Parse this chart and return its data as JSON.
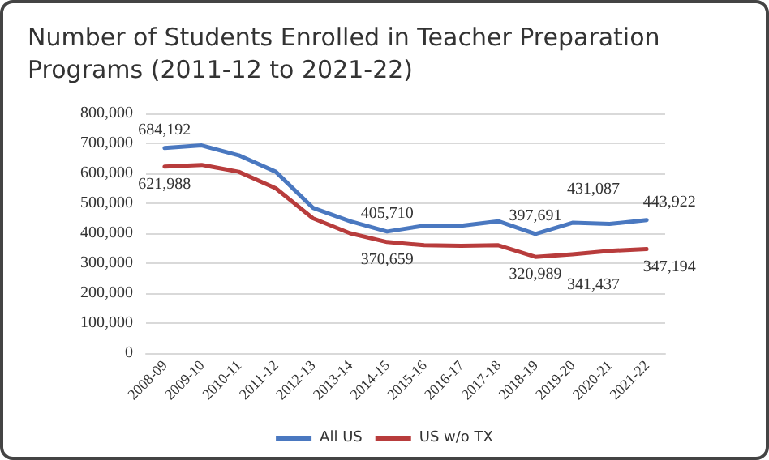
{
  "chart_data": {
    "type": "line",
    "title": "Number of Students Enrolled in Teacher Preparation Programs (2011-12 to 2021-22)",
    "categories": [
      "2008-09",
      "2009-10",
      "2010-11",
      "2011-12",
      "2012-13",
      "2013-14",
      "2014-15",
      "2015-16",
      "2016-17",
      "2017-18",
      "2018-19",
      "2019-20",
      "2020-21",
      "2021-22"
    ],
    "series": [
      {
        "name": "All US",
        "color": "#4a78c0",
        "values": [
          684192,
          693000,
          660000,
          605000,
          485000,
          440000,
          405710,
          425000,
          425000,
          440000,
          397691,
          435000,
          431087,
          443922
        ],
        "value_labels": [
          "684,192",
          null,
          null,
          null,
          null,
          null,
          "405,710",
          null,
          null,
          null,
          "397,691",
          null,
          "431,087",
          "443,922"
        ]
      },
      {
        "name": "US w/o TX",
        "color": "#b83c3c",
        "values": [
          621988,
          628000,
          605000,
          550000,
          450000,
          400000,
          370659,
          360000,
          358000,
          360000,
          320989,
          330000,
          341437,
          347194
        ],
        "value_labels": [
          "621,988",
          null,
          null,
          null,
          null,
          null,
          "370,659",
          null,
          null,
          null,
          "320,989",
          null,
          "341,437",
          "347,194"
        ]
      }
    ],
    "ylim": [
      0,
      800000
    ],
    "yticks": [
      0,
      {
        "value": 100000,
        "label": "100,000"
      },
      {
        "value": 200000,
        "label": "200,000"
      },
      {
        "value": 300000,
        "label": "300,000"
      },
      {
        "value": 400000,
        "label": "400,000"
      },
      {
        "value": 500000,
        "label": "500,000"
      },
      {
        "value": 600000,
        "label": "600,000"
      },
      {
        "value": 700000,
        "label": "700,000"
      },
      {
        "value": 800000,
        "label": "800,000"
      }
    ],
    "grid": "y",
    "legend": "bottom",
    "marker": "none",
    "line_style": "solid"
  }
}
